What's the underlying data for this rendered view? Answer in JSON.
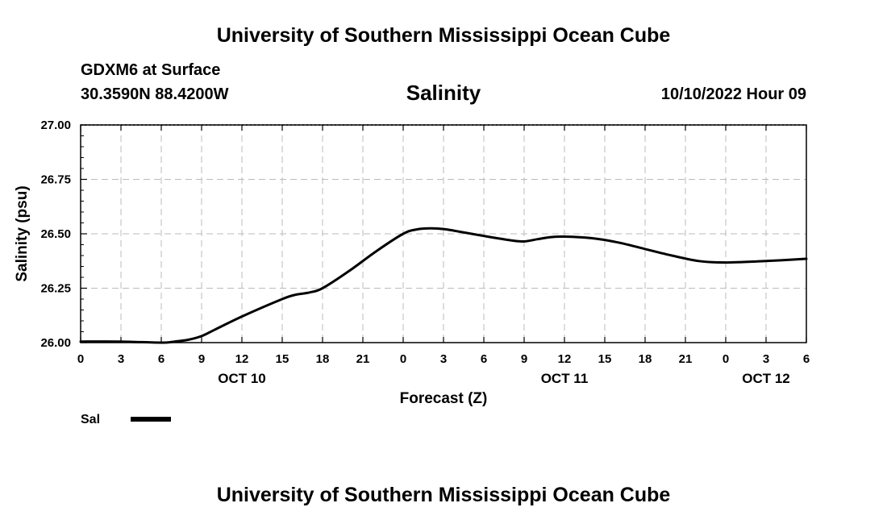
{
  "header": {
    "title_top": "University of Southern Mississippi Ocean Cube",
    "station": "GDXM6 at Surface",
    "coords": "30.3590N  88.4200W",
    "datetime": "10/10/2022 Hour 09",
    "title_bottom": "University of Southern Mississippi Ocean Cube"
  },
  "chart_data": {
    "type": "line",
    "title": "Salinity",
    "xlabel": "Forecast (Z)",
    "ylabel": "Salinity (psu)",
    "ylim": [
      26.0,
      27.0
    ],
    "xlim_hours": [
      0,
      54
    ],
    "y_ticks": [
      "26.00",
      "26.25",
      "26.50",
      "26.75",
      "27.00"
    ],
    "x_tick_labels": [
      "0",
      "3",
      "6",
      "9",
      "12",
      "15",
      "18",
      "21",
      "0",
      "3",
      "6",
      "9",
      "12",
      "15",
      "18",
      "21",
      "0",
      "3",
      "6"
    ],
    "day_labels": [
      {
        "label": "OCT 10",
        "hour": 12
      },
      {
        "label": "OCT 11",
        "hour": 36
      },
      {
        "label": "OCT 12",
        "hour": 51
      }
    ],
    "grid": true,
    "legend_position": "bottom-left",
    "series": [
      {
        "name": "Sal",
        "color": "#000000",
        "x_hours": [
          0,
          3,
          6,
          7,
          8,
          9,
          10,
          12,
          15,
          16,
          17,
          18,
          20,
          22,
          24,
          25,
          26,
          27,
          28,
          30,
          32,
          33,
          34,
          35,
          36,
          38,
          40,
          42,
          44,
          46,
          48,
          51,
          54
        ],
        "values": [
          26.005,
          26.005,
          26.0,
          26.005,
          26.013,
          26.03,
          26.06,
          26.12,
          26.2,
          26.22,
          26.23,
          26.25,
          26.33,
          26.42,
          26.5,
          26.52,
          26.525,
          26.522,
          26.512,
          26.49,
          26.47,
          26.465,
          26.475,
          26.485,
          26.487,
          26.48,
          26.46,
          26.43,
          26.4,
          26.375,
          26.368,
          26.375,
          26.385
        ]
      }
    ]
  }
}
